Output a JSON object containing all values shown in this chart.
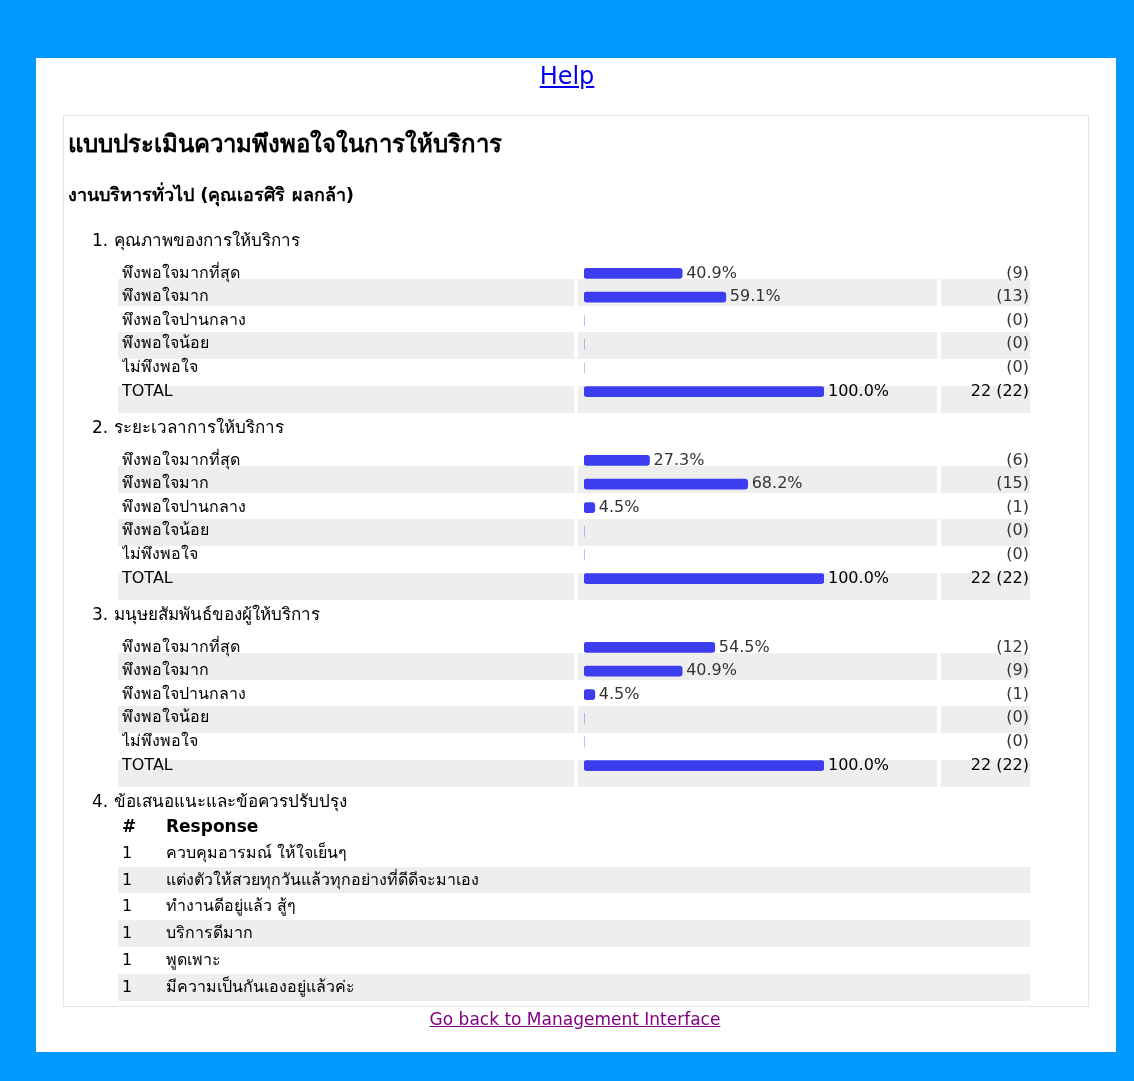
{
  "chart_data": [
    {
      "type": "other",
      "title": "แบบประเมินความพึงพอใจในการให้บริการ",
      "subtitle": "งานบริหารทั่วไป (คุณเอรศิริ ผลกล้า)",
      "annotations": [
        "Help",
        "Go back to Management Interface"
      ]
    },
    {
      "type": "bar",
      "orientation": "horizontal",
      "title": "1. คุณภาพของการให้บริการ",
      "categories": [
        "พึงพอใจมากที่สุด",
        "พึงพอใจมาก",
        "พึงพอใจปานกลาง",
        "พึงพอใจน้อย",
        "ไม่พึงพอใจ",
        "TOTAL"
      ],
      "values": [
        40.9,
        59.1,
        0,
        0,
        0,
        100
      ],
      "value_labels": [
        "40.9%",
        "59.1%",
        null,
        null,
        null,
        "100.0%"
      ],
      "color": "#3c3cf0",
      "xlim": [
        0,
        100
      ],
      "annotations": [
        "(9)",
        "(13)",
        "(0)",
        "(0)",
        "(0)",
        "22 (22)"
      ]
    },
    {
      "type": "bar",
      "orientation": "horizontal",
      "title": "2. ระยะเวลาการให้บริการ",
      "categories": [
        "พึงพอใจมากที่สุด",
        "พึงพอใจมาก",
        "พึงพอใจปานกลาง",
        "พึงพอใจน้อย",
        "ไม่พึงพอใจ",
        "TOTAL"
      ],
      "values": [
        27.3,
        68.2,
        4.5,
        0,
        0,
        100
      ],
      "value_labels": [
        "27.3%",
        "68.2%",
        "4.5%",
        null,
        null,
        "100.0%"
      ],
      "color": "#3c3cf0",
      "xlim": [
        0,
        100
      ],
      "annotations": [
        "(6)",
        "(15)",
        "(1)",
        "(0)",
        "(0)",
        "22 (22)"
      ]
    },
    {
      "type": "bar",
      "orientation": "horizontal",
      "title": "3. มนุษยสัมพันธ์ของผู้ให้บริการ",
      "categories": [
        "พึงพอใจมากที่สุด",
        "พึงพอใจมาก",
        "พึงพอใจปานกลาง",
        "พึงพอใจน้อย",
        "ไม่พึงพอใจ",
        "TOTAL"
      ],
      "values": [
        54.5,
        40.9,
        4.5,
        0,
        0,
        100
      ],
      "value_labels": [
        "54.5%",
        "40.9%",
        "4.5%",
        null,
        null,
        "100.0%"
      ],
      "color": "#3c3cf0",
      "xlim": [
        0,
        100
      ],
      "annotations": [
        "(12)",
        "(9)",
        "(1)",
        "(0)",
        "(0)",
        "22 (22)"
      ]
    },
    {
      "type": "other",
      "title": "4. ข้อเสนอแนะและข้อควรปรับปรุง",
      "annotations": [
        "#",
        "Response",
        "1",
        "ควบคุมอารมณ์ ให้ใจเย็นๆ",
        "1",
        "แต่งตัวให้สวยทุกวันแล้วทุกอย่างที่ดีดีจะมาเอง",
        "1",
        "ทำงานดีอยู่แล้ว สู้ๆ",
        "1",
        "บริการดีมาก",
        "1",
        "พูดเพาะ",
        "1",
        "มีความเป็นกันเองอยู่แล้วค่ะ"
      ]
    }
  ]
}
